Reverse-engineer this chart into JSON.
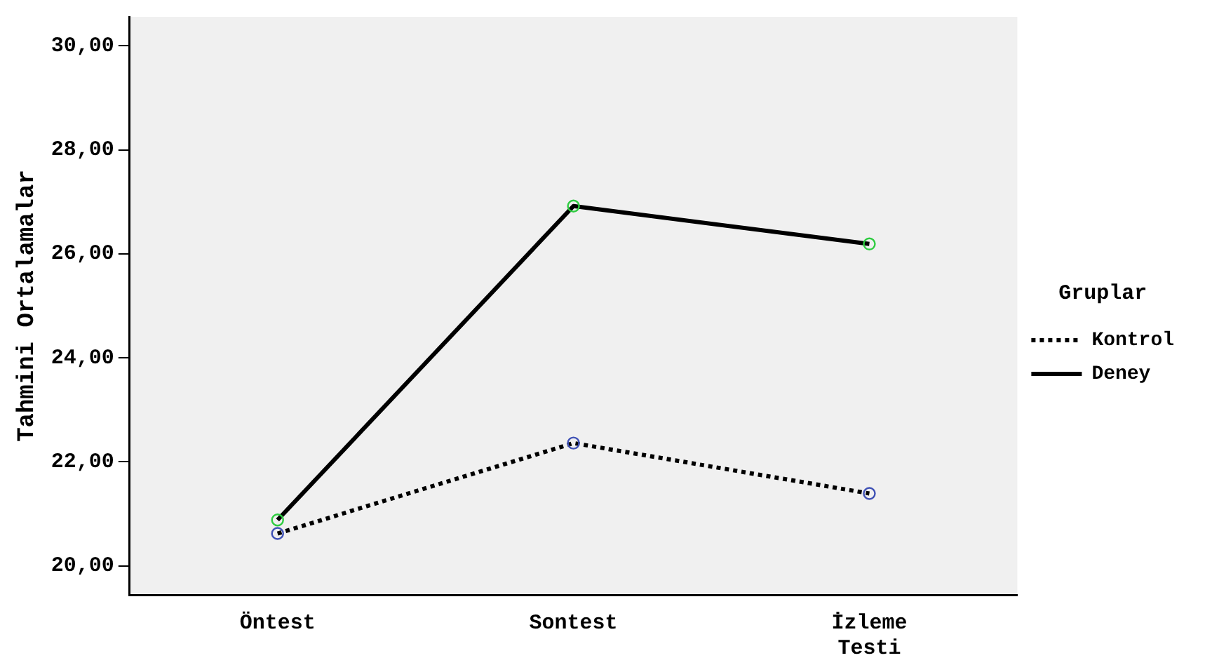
{
  "chart_data": {
    "type": "line",
    "ylabel": "Tahmini Ortalamalar",
    "legend_title": "Gruplar",
    "legend": "right",
    "grid": false,
    "marker": "circle",
    "categories": [
      "Öntest",
      "Sontest",
      "İzleme Testi"
    ],
    "ylim": [
      19.44,
      30.56
    ],
    "yticks": [
      {
        "value": 20,
        "label": "20,00"
      },
      {
        "value": 22,
        "label": "22,00"
      },
      {
        "value": 24,
        "label": "24,00"
      },
      {
        "value": 26,
        "label": "26,00"
      },
      {
        "value": 28,
        "label": "28,00"
      },
      {
        "value": 30,
        "label": "30,00"
      }
    ],
    "series": [
      {
        "name": "Kontrol",
        "color": "#000000",
        "line_style": "dotted",
        "colors": [
          "#3f51b5",
          "#3f51b5",
          "#3f51b5"
        ],
        "values": [
          20.62,
          22.36,
          21.39
        ]
      },
      {
        "name": "Deney",
        "color": "#000000",
        "line_style": "solid",
        "colors": [
          "#2ecc40",
          "#2ecc40",
          "#2ecc40"
        ],
        "values": [
          20.88,
          26.92,
          26.19
        ]
      }
    ]
  }
}
